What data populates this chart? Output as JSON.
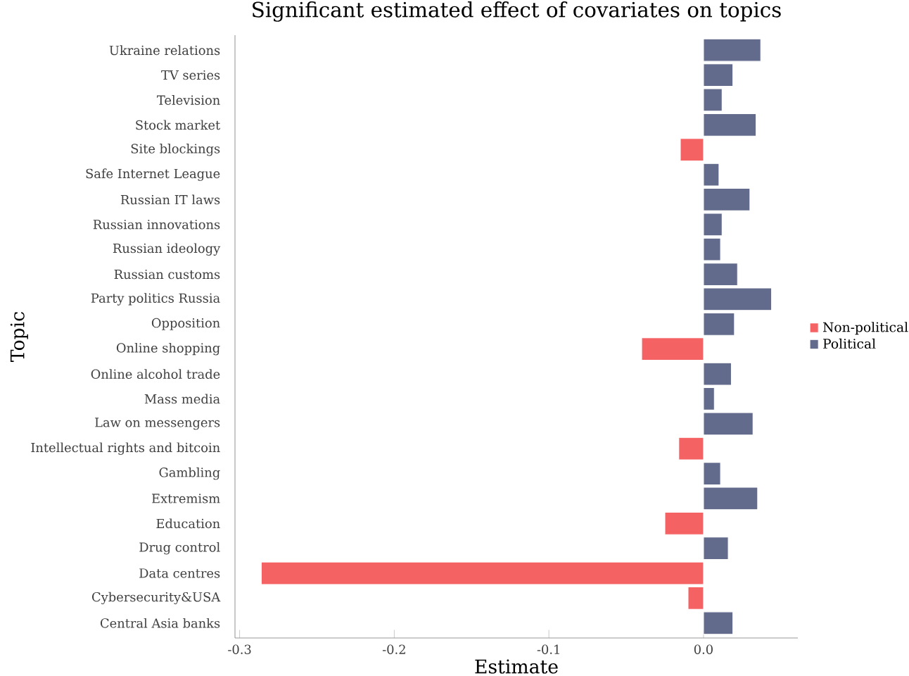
{
  "chart_data": {
    "type": "bar",
    "orientation": "horizontal",
    "title": "Significant estimated effect of covariates on topics",
    "xlabel": "Estimate",
    "ylabel": "Topic",
    "categories": [
      "Ukraine relations",
      "TV series",
      "Television",
      "Stock market",
      "Site blockings",
      "Safe Internet League",
      "Russian IT laws",
      "Russian innovations",
      "Russian ideology",
      "Russian customs",
      "Party politics Russia",
      "Opposition",
      "Online shopping",
      "Online alcohol trade",
      "Mass media",
      "Law on messengers",
      "Intellectual rights and bitcoin",
      "Gambling",
      "Extremism",
      "Education",
      "Drug control",
      "Data centres",
      "Cybersecurity&USA",
      "Central Asia banks"
    ],
    "series": [
      {
        "name": "Non-political",
        "color": "#f46263",
        "values": [
          null,
          null,
          null,
          null,
          -0.015,
          null,
          null,
          null,
          null,
          null,
          null,
          null,
          -0.04,
          null,
          null,
          null,
          -0.016,
          null,
          null,
          -0.025,
          null,
          -0.286,
          -0.01,
          null
        ]
      },
      {
        "name": "Political",
        "color": "#626b8b",
        "values": [
          0.037,
          0.019,
          0.012,
          0.034,
          null,
          0.01,
          0.03,
          0.012,
          0.011,
          0.022,
          0.044,
          0.02,
          null,
          0.018,
          0.007,
          0.032,
          null,
          0.011,
          0.035,
          null,
          0.016,
          null,
          null,
          0.019
        ]
      }
    ],
    "xlim": [
      -0.303,
      0.061
    ],
    "xticks": [
      -0.3,
      -0.2,
      -0.1,
      {
        "value": 0,
        "label": "0.0"
      }
    ],
    "legend": "right",
    "grid": false
  }
}
